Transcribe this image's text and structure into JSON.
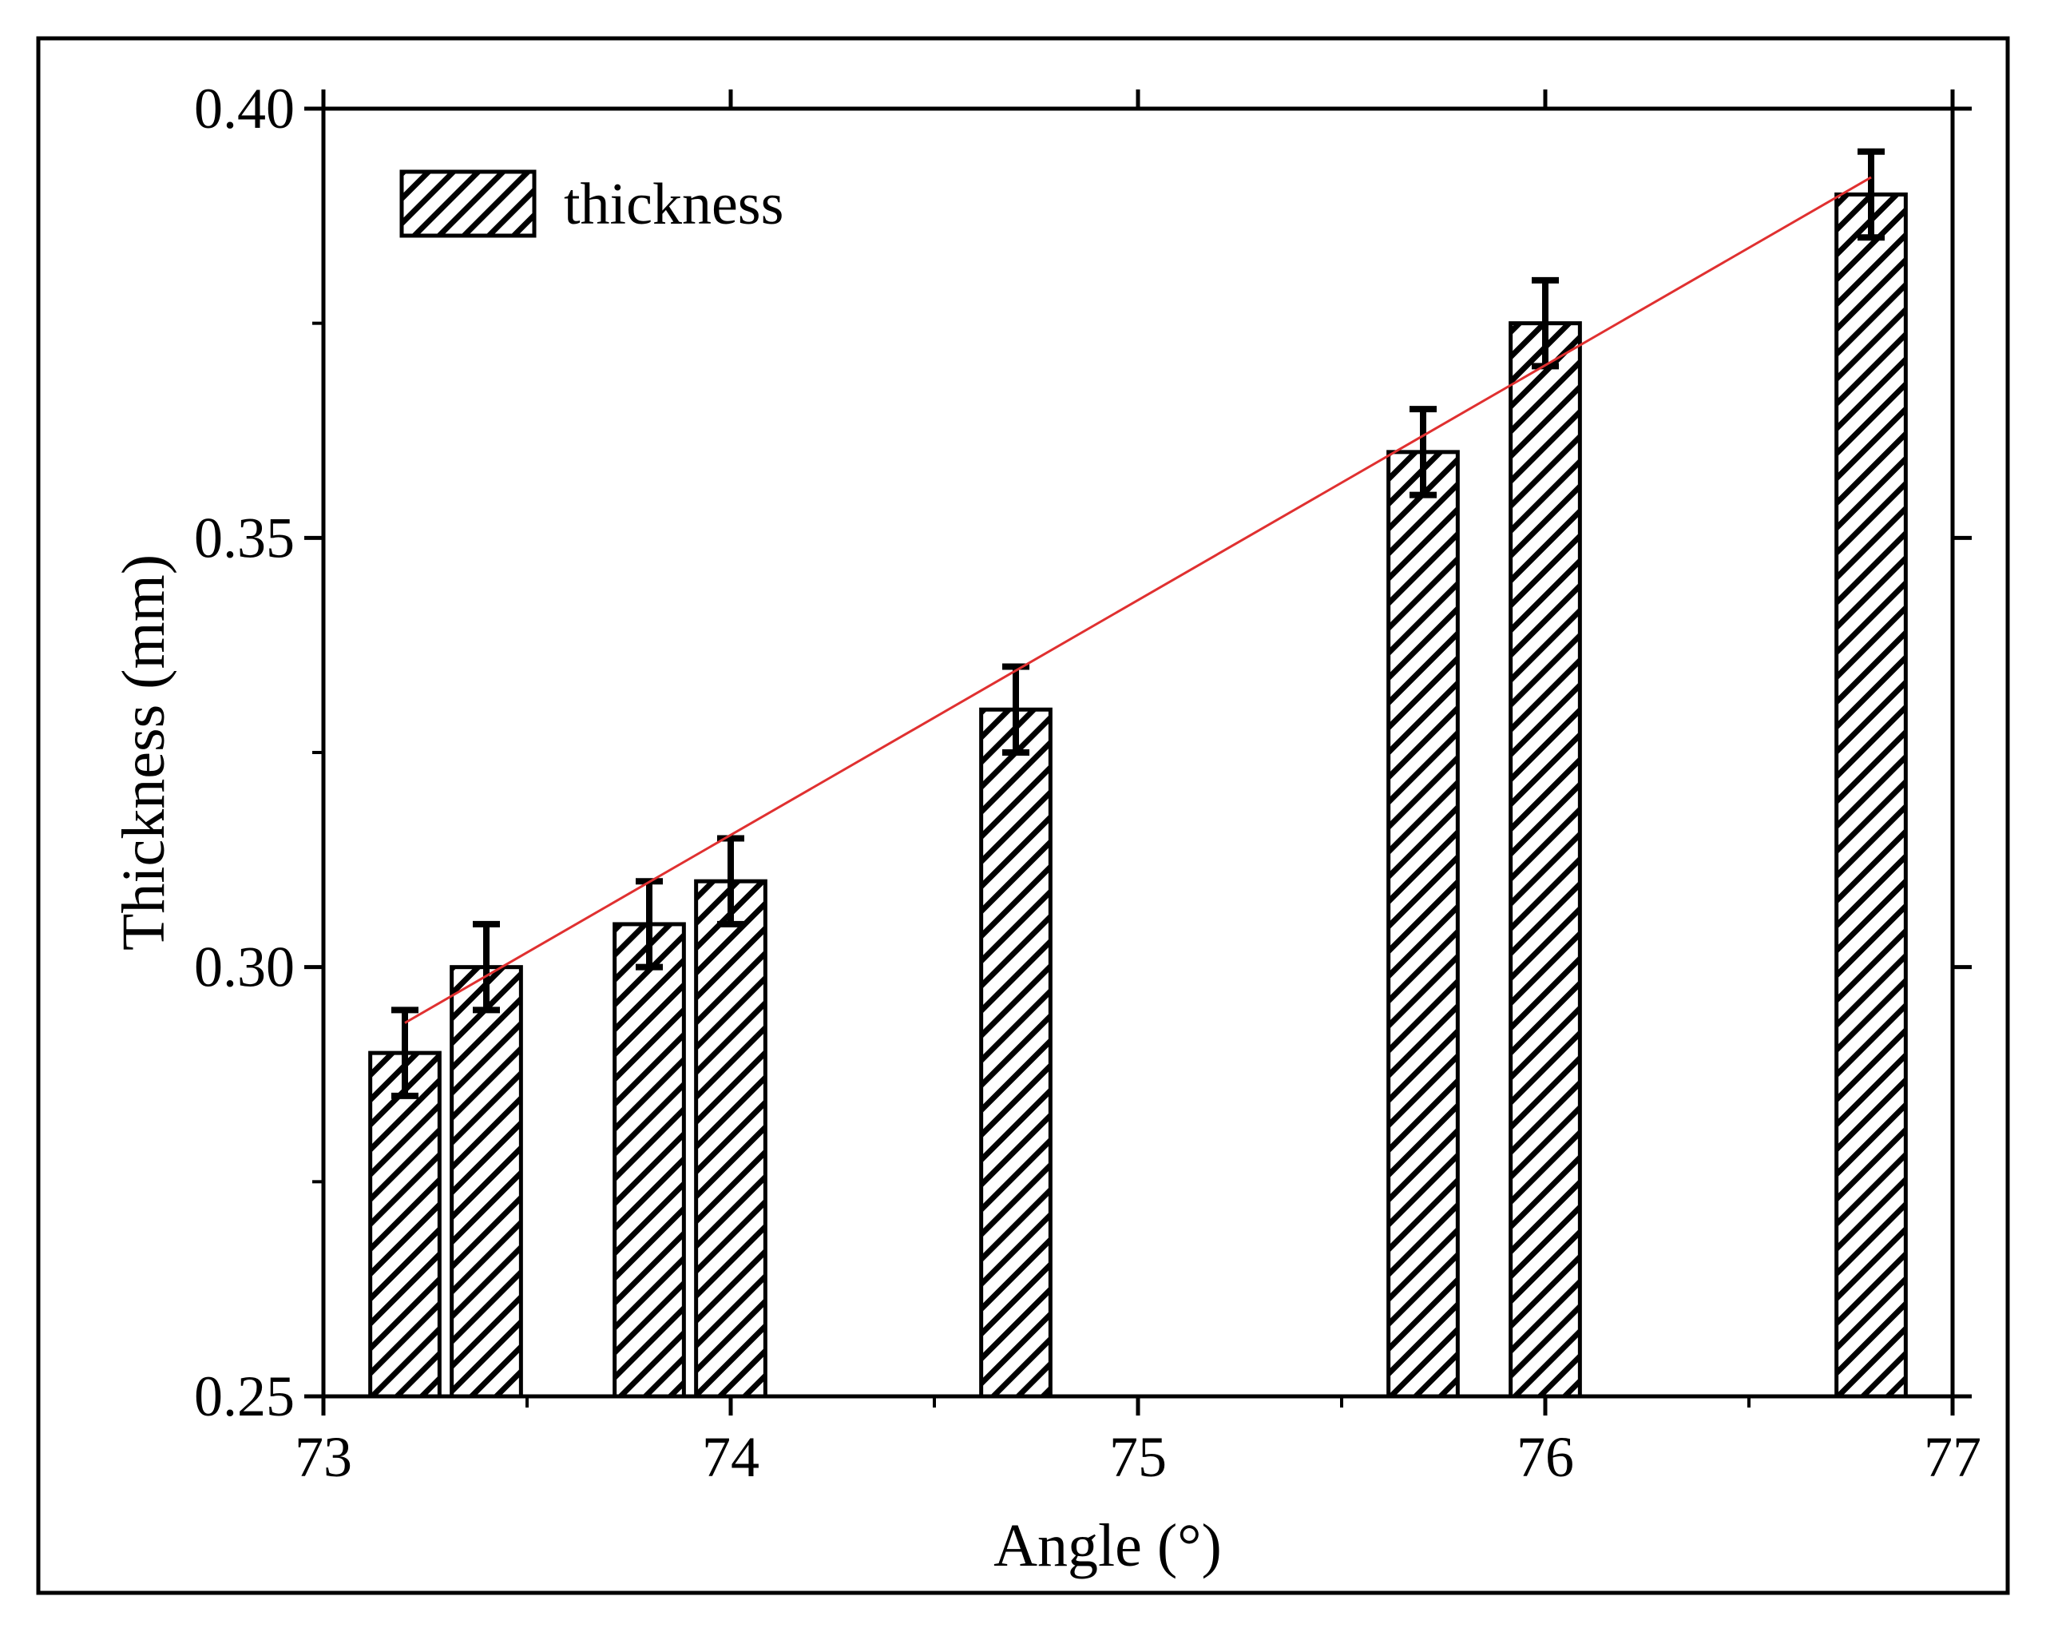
{
  "chart_data": {
    "type": "bar",
    "title": "",
    "xlabel": "Angle (°)",
    "ylabel": "Thickness (mm)",
    "xlim": [
      73,
      77
    ],
    "ylim": [
      0.25,
      0.4
    ],
    "xticks": [
      73,
      74,
      75,
      76,
      77
    ],
    "xtick_labels": [
      "73",
      "74",
      "75",
      "76",
      "77"
    ],
    "yticks": [
      0.25,
      0.3,
      0.35,
      0.4
    ],
    "ytick_labels": [
      "0.25",
      "0.30",
      "0.35",
      "0.40"
    ],
    "legend": {
      "position": "top-left",
      "entries": [
        "thickness"
      ]
    },
    "series": [
      {
        "name": "thickness",
        "x": [
          73.2,
          73.4,
          73.8,
          74.0,
          74.7,
          75.7,
          76.0,
          76.8
        ],
        "values": [
          0.29,
          0.3,
          0.305,
          0.31,
          0.33,
          0.36,
          0.375,
          0.39
        ],
        "errors": [
          0.005,
          0.005,
          0.005,
          0.005,
          0.005,
          0.005,
          0.005,
          0.005
        ],
        "bar_width_units": 0.17,
        "pattern": "diagonal-hatch"
      }
    ],
    "fit_line": {
      "name": "linear fit",
      "x": [
        73.2,
        76.8
      ],
      "y": [
        0.2935,
        0.392
      ],
      "color": "#e03030"
    },
    "grid": false
  }
}
